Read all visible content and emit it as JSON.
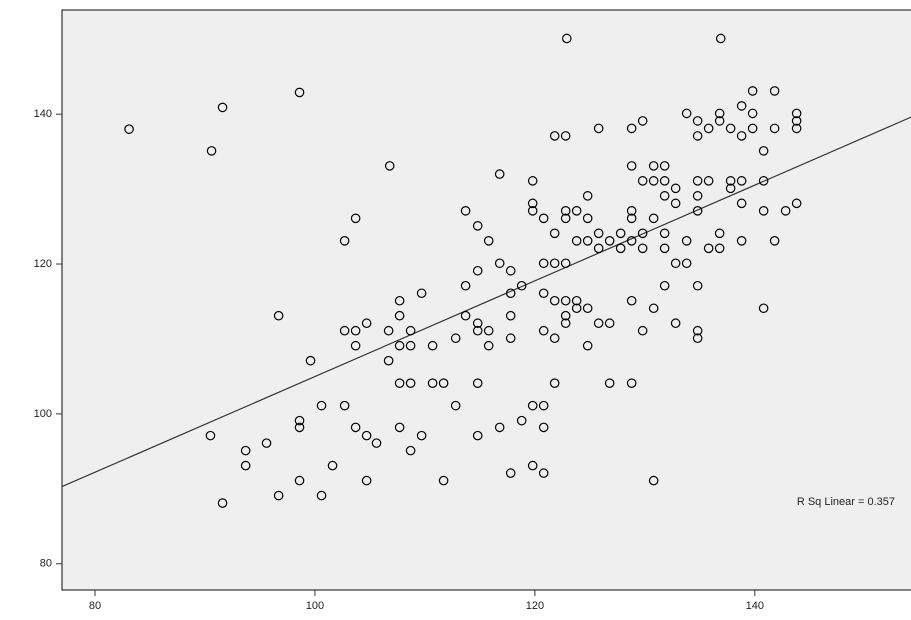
{
  "chart_data": {
    "type": "scatter",
    "x": [
      83.1,
      90.6,
      91.6,
      98.6,
      122.9,
      136.9,
      96.7,
      106.8,
      103.7,
      102.7,
      90.5,
      93.7,
      93.7,
      95.6,
      91.6,
      96.7,
      98.6,
      98.6,
      98.6,
      100.6,
      100.6,
      101.6,
      99.6,
      102.7,
      103.7,
      104.7,
      105.6,
      104.7,
      102.7,
      103.7,
      103.7,
      104.7,
      106.7,
      106.7,
      107.7,
      107.7,
      107.7,
      108.7,
      108.7,
      109.7,
      107.7,
      108.7,
      107.7,
      108.7,
      109.7,
      110.7,
      110.7,
      111.7,
      111.7,
      112.8,
      112.8,
      113.7,
      113.7,
      113.7,
      114.8,
      114.8,
      114.8,
      114.8,
      114.8,
      114.8,
      115.8,
      115.8,
      115.8,
      116.8,
      116.8,
      116.8,
      117.8,
      117.8,
      117.8,
      117.8,
      117.8,
      118.8,
      118.8,
      119.8,
      119.8,
      119.8,
      119.8,
      119.8,
      120.8,
      120.8,
      120.8,
      120.8,
      120.8,
      120.8,
      120.8,
      121.8,
      121.8,
      121.8,
      121.8,
      121.8,
      121.8,
      122.8,
      122.8,
      122.8,
      122.8,
      122.8,
      122.8,
      122.8,
      123.8,
      123.8,
      123.8,
      123.8,
      124.8,
      124.8,
      124.8,
      124.8,
      124.8,
      125.8,
      125.8,
      125.8,
      125.8,
      126.8,
      126.8,
      126.8,
      127.8,
      127.8,
      128.8,
      128.8,
      128.8,
      128.8,
      128.8,
      128.8,
      128.8,
      129.8,
      129.8,
      129.8,
      129.8,
      129.8,
      130.8,
      130.8,
      130.8,
      130.8,
      130.8,
      131.8,
      131.8,
      131.8,
      131.8,
      131.8,
      131.8,
      132.8,
      132.8,
      132.8,
      132.8,
      133.8,
      133.8,
      133.8,
      134.8,
      134.8,
      134.8,
      134.8,
      134.8,
      134.8,
      134.8,
      134.8,
      135.8,
      135.8,
      135.8,
      136.8,
      136.8,
      136.8,
      136.8,
      137.8,
      137.8,
      137.8,
      138.8,
      138.8,
      138.8,
      138.8,
      138.8,
      139.8,
      139.8,
      139.8,
      140.8,
      140.8,
      140.8,
      140.8,
      141.8,
      141.8,
      141.8,
      142.8,
      143.8,
      143.8,
      143.8,
      143.8
    ],
    "y": [
      138,
      135.1,
      140.9,
      142.9,
      150.1,
      150.1,
      113.1,
      133.1,
      126.1,
      123.1,
      97.1,
      95.1,
      93.1,
      96.1,
      88.1,
      89.1,
      91.1,
      99.1,
      98.2,
      101.1,
      89.1,
      93.1,
      107.1,
      101.1,
      98.2,
      97.1,
      96.1,
      91.1,
      111.1,
      111.1,
      109.1,
      112.1,
      111.1,
      107.1,
      115.1,
      113.1,
      109.1,
      111.1,
      109.1,
      116.1,
      104.1,
      104.1,
      98.2,
      95.1,
      97.1,
      109.1,
      104.1,
      104.1,
      91.1,
      101.1,
      110.1,
      127.1,
      117.1,
      113.1,
      125.1,
      119.1,
      112.1,
      111.1,
      104.1,
      97.1,
      123.1,
      111.1,
      109.1,
      132,
      120.1,
      98.2,
      119.1,
      116.1,
      113.1,
      110.1,
      92.1,
      117.1,
      99.1,
      131.1,
      128.1,
      127.1,
      101.1,
      93.1,
      126.1,
      120.1,
      116.1,
      111.1,
      101.1,
      98.2,
      92.1,
      137.1,
      124.1,
      120.1,
      115.1,
      104.1,
      110.1,
      137.1,
      127.1,
      126.1,
      120.1,
      115.1,
      113.1,
      112.1,
      127.1,
      123.1,
      115.1,
      114.1,
      129.1,
      126.1,
      123.1,
      114.1,
      109.1,
      138.1,
      124.1,
      122.1,
      112.1,
      123.1,
      112.1,
      104.1,
      124.1,
      122.1,
      138.1,
      133.1,
      127.1,
      126.1,
      123.1,
      115.1,
      104.1,
      139.1,
      131.1,
      124.1,
      122.1,
      111.1,
      133.1,
      131.1,
      126.1,
      114.1,
      91.1,
      133.1,
      131.1,
      129.1,
      124.1,
      122.1,
      117.1,
      130.1,
      128.1,
      112.1,
      120.1,
      120.1,
      123.1,
      140.1,
      139.1,
      137.1,
      131.1,
      129.1,
      127.1,
      117.1,
      111.1,
      110.1,
      138.1,
      131.1,
      122.1,
      140.1,
      139.1,
      124.1,
      122.1,
      138.1,
      131.1,
      130.1,
      141.1,
      137.1,
      131.1,
      128.1,
      123.1,
      143.1,
      140.1,
      138.1,
      135.1,
      131.1,
      127.1,
      114.1,
      143.1,
      138.1,
      123.1,
      127.1,
      140.1,
      139.1,
      138.1,
      128.1
    ],
    "fit_line": {
      "x": [
        77,
        154.2
      ],
      "y": [
        90.3,
        139.6
      ]
    },
    "annotation": "R Sq Linear = 0.357",
    "xlim": [
      77,
      154.2
    ],
    "ylim": [
      76.5,
      153.9
    ],
    "xticks": [
      80,
      100,
      120,
      140
    ],
    "yticks": [
      80,
      100,
      120,
      140
    ],
    "color": "#000000"
  }
}
